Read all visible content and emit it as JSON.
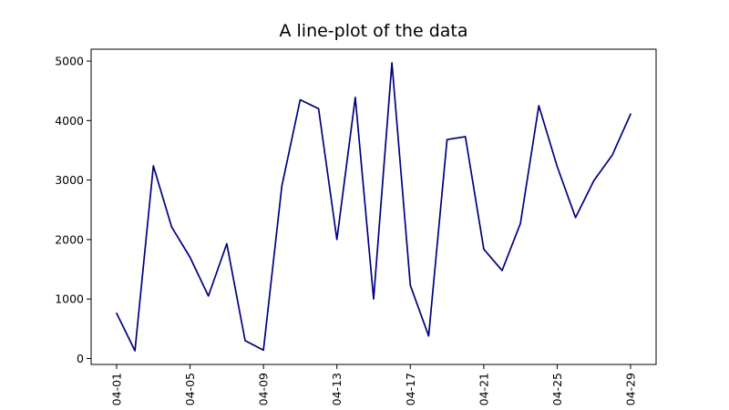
{
  "chart_data": {
    "type": "line",
    "title": "A line-plot of the data",
    "xlabel": "",
    "ylabel": "",
    "x": [
      "04-01",
      "04-02",
      "04-03",
      "04-04",
      "04-05",
      "04-06",
      "04-07",
      "04-08",
      "04-09",
      "04-10",
      "04-11",
      "04-12",
      "04-13",
      "04-14",
      "04-15",
      "04-16",
      "04-17",
      "04-18",
      "04-19",
      "04-20",
      "04-21",
      "04-22",
      "04-23",
      "04-24",
      "04-25",
      "04-26",
      "04-27",
      "04-28",
      "04-29"
    ],
    "series": [
      {
        "color": "#000080",
        "values": [
          760,
          130,
          3240,
          2210,
          1700,
          1050,
          1930,
          300,
          140,
          2900,
          4350,
          4200,
          2000,
          4390,
          1000,
          4970,
          1230,
          380,
          3680,
          3730,
          1840,
          1480,
          2270,
          4250,
          3230,
          2370,
          2990,
          3420,
          4110
        ]
      }
    ],
    "xticks": [
      "04-01",
      "04-05",
      "04-09",
      "04-13",
      "04-17",
      "04-21",
      "04-25",
      "04-29"
    ],
    "yticks": [
      0,
      1000,
      2000,
      3000,
      4000,
      5000
    ],
    "ylim": [
      -100,
      5200
    ],
    "grid": false,
    "legend": "none"
  }
}
